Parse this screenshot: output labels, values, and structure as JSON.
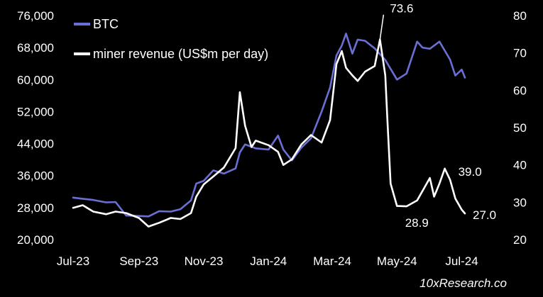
{
  "chart_data": {
    "type": "line",
    "title": "",
    "xlabel": "",
    "ylabel_left": "",
    "ylabel_right": "",
    "x_tick_labels": [
      "Jul-23",
      "Sep-23",
      "Nov-23",
      "Jan-24",
      "Mar-24",
      "May-24",
      "Jul-24"
    ],
    "y_left_ticks": [
      "20,000",
      "28,000",
      "36,000",
      "44,000",
      "52,000",
      "60,000",
      "68,000",
      "76,000"
    ],
    "y_right_ticks": [
      "20",
      "30",
      "40",
      "50",
      "60",
      "70",
      "80"
    ],
    "ylim_left": [
      20000,
      76000
    ],
    "ylim_right": [
      20,
      80
    ],
    "grid": false,
    "legend_position": "top-left",
    "colors": {
      "btc": "#6b6fd4",
      "revenue": "#ffffff",
      "background": "#000000"
    },
    "series": [
      {
        "name": "BTC",
        "axis": "left",
        "x": [
          "2023-07-01",
          "2023-07-10",
          "2023-07-20",
          "2023-08-01",
          "2023-08-10",
          "2023-08-20",
          "2023-09-01",
          "2023-09-10",
          "2023-09-20",
          "2023-10-01",
          "2023-10-10",
          "2023-10-20",
          "2023-10-25",
          "2023-11-01",
          "2023-11-10",
          "2023-11-20",
          "2023-12-01",
          "2023-12-05",
          "2023-12-10",
          "2023-12-20",
          "2024-01-01",
          "2024-01-10",
          "2024-01-15",
          "2024-01-23",
          "2024-02-01",
          "2024-02-10",
          "2024-02-20",
          "2024-02-28",
          "2024-03-05",
          "2024-03-10",
          "2024-03-14",
          "2024-03-20",
          "2024-03-25",
          "2024-04-01",
          "2024-04-10",
          "2024-04-20",
          "2024-05-01",
          "2024-05-10",
          "2024-05-20",
          "2024-05-25",
          "2024-06-01",
          "2024-06-10",
          "2024-06-20",
          "2024-06-25",
          "2024-07-01",
          "2024-07-04"
        ],
        "values": [
          30500,
          30200,
          29900,
          29300,
          29400,
          26000,
          25900,
          25800,
          27100,
          27000,
          27600,
          29800,
          34000,
          34700,
          37300,
          36500,
          37800,
          41800,
          43800,
          42800,
          42500,
          46000,
          42500,
          39800,
          43000,
          45300,
          52000,
          58000,
          66000,
          68500,
          71500,
          66500,
          70000,
          69700,
          67800,
          64900,
          60000,
          61500,
          69500,
          68000,
          67700,
          69500,
          65000,
          61000,
          62500,
          60500
        ]
      },
      {
        "name": "miner revenue (US$m per day)",
        "axis": "right",
        "x": [
          "2023-07-01",
          "2023-07-10",
          "2023-07-20",
          "2023-08-01",
          "2023-08-10",
          "2023-08-20",
          "2023-09-01",
          "2023-09-10",
          "2023-09-20",
          "2023-10-01",
          "2023-10-10",
          "2023-10-20",
          "2023-10-25",
          "2023-11-01",
          "2023-11-10",
          "2023-11-20",
          "2023-12-01",
          "2023-12-05",
          "2023-12-10",
          "2023-12-16",
          "2023-12-20",
          "2024-01-01",
          "2024-01-10",
          "2024-01-15",
          "2024-01-23",
          "2024-02-01",
          "2024-02-10",
          "2024-02-20",
          "2024-02-28",
          "2024-03-05",
          "2024-03-10",
          "2024-03-14",
          "2024-03-20",
          "2024-03-25",
          "2024-04-01",
          "2024-04-10",
          "2024-04-15",
          "2024-04-20",
          "2024-04-22",
          "2024-04-25",
          "2024-05-01",
          "2024-05-10",
          "2024-05-20",
          "2024-05-25",
          "2024-06-01",
          "2024-06-05",
          "2024-06-10",
          "2024-06-15",
          "2024-06-20",
          "2024-06-25",
          "2024-07-01",
          "2024-07-04"
        ],
        "values": [
          28.5,
          29.2,
          27.5,
          26.8,
          27.5,
          27.1,
          25.8,
          23.5,
          24.5,
          25.8,
          25.5,
          27.1,
          31.5,
          34.8,
          36.9,
          39.3,
          44.5,
          59.5,
          50.5,
          44.8,
          46.5,
          45.3,
          43.5,
          40.0,
          41.5,
          45.5,
          48.0,
          46.0,
          52.0,
          67.0,
          70.5,
          66.0,
          64.0,
          62.5,
          65.0,
          66.5,
          73.6,
          64.0,
          52.0,
          35.0,
          29.0,
          28.9,
          30.5,
          33.0,
          36.5,
          31.5,
          35.0,
          39.0,
          36.0,
          31.0,
          28.0,
          27.0
        ]
      }
    ],
    "annotations": [
      {
        "label": "73.6",
        "x": "2024-04-15",
        "value": 73.6,
        "axis": "right"
      },
      {
        "label": "28.9",
        "x": "2024-05-10",
        "value": 28.9,
        "axis": "right"
      },
      {
        "label": "39.0",
        "x": "2024-06-15",
        "value": 39.0,
        "axis": "right"
      },
      {
        "label": "27.0",
        "x": "2024-07-04",
        "value": 27.0,
        "axis": "right"
      }
    ],
    "source": "10xResearch.co"
  }
}
